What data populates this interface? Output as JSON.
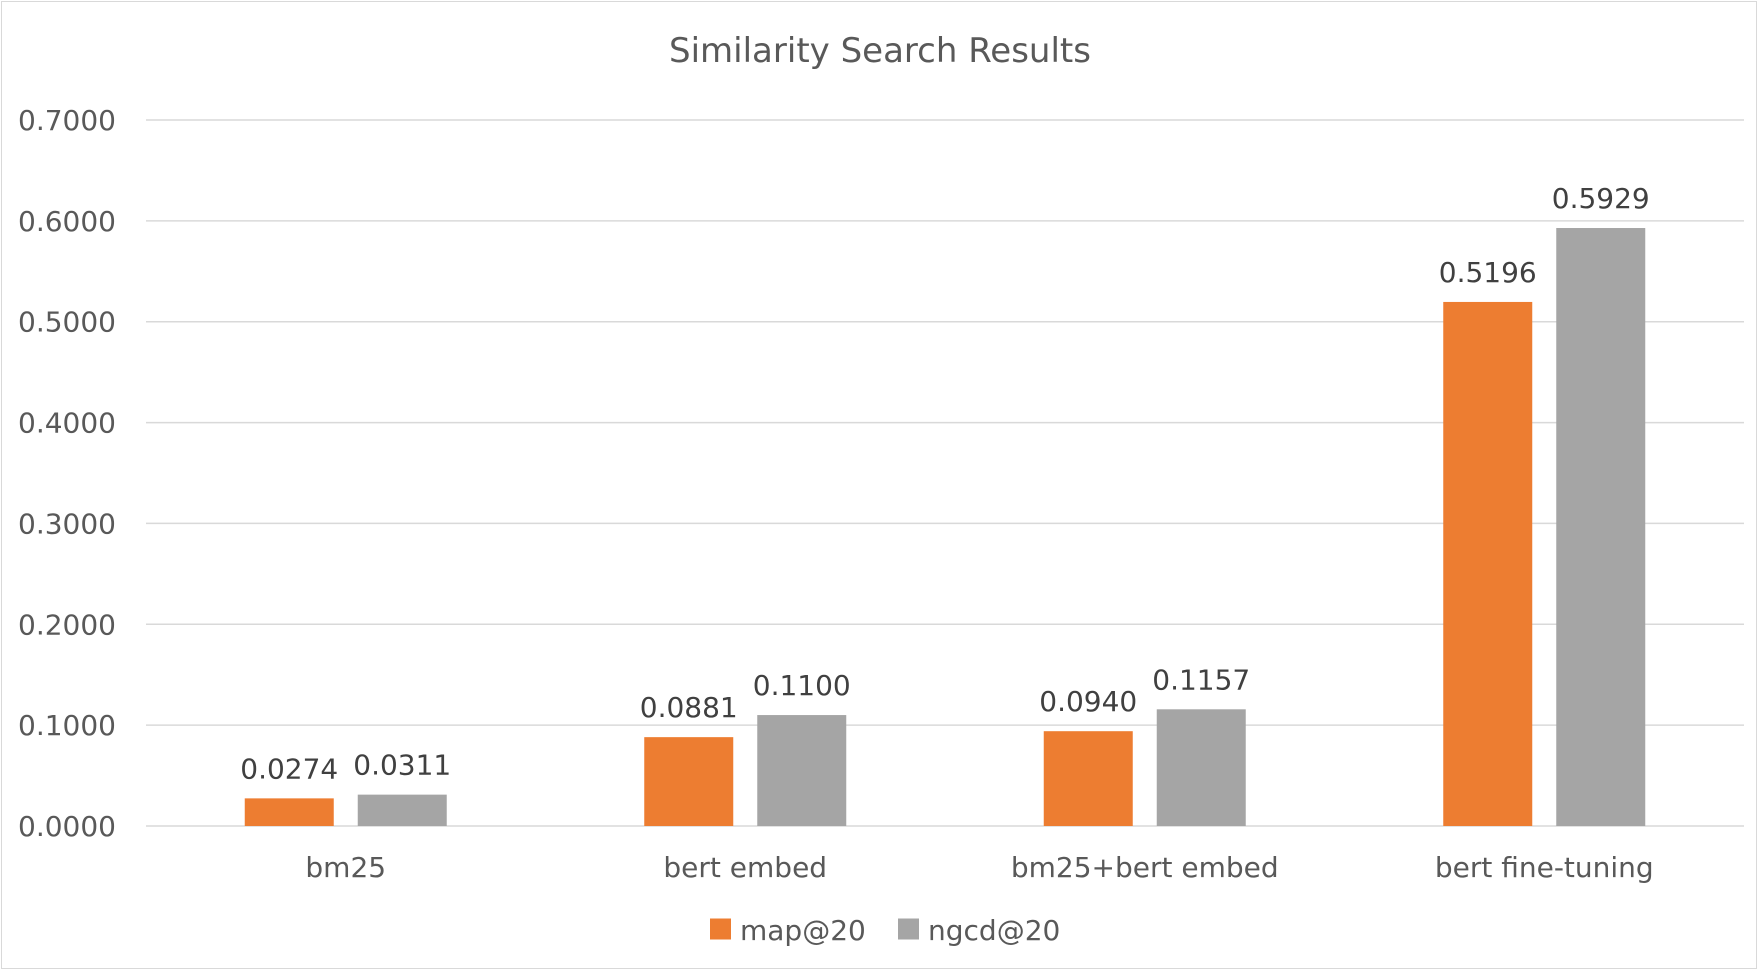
{
  "chart_data": {
    "type": "bar",
    "title": "Similarity Search Results",
    "categories": [
      "bm25",
      "bert embed",
      "bm25+bert embed",
      "bert fine-tuning"
    ],
    "series": [
      {
        "name": "map@20",
        "color": "#ED7D31",
        "values": [
          0.0274,
          0.0881,
          0.094,
          0.5196
        ],
        "labels": [
          "0.0274",
          "0.0881",
          "0.0940",
          "0.5196"
        ]
      },
      {
        "name": "ngcd@20",
        "color": "#A5A5A5",
        "values": [
          0.0311,
          0.11,
          0.1157,
          0.5929
        ],
        "labels": [
          "0.0311",
          "0.1100",
          "0.1157",
          "0.5929"
        ]
      }
    ],
    "yticks": [
      "0.0000",
      "0.1000",
      "0.2000",
      "0.3000",
      "0.4000",
      "0.5000",
      "0.6000",
      "0.7000"
    ],
    "ylim": [
      0,
      0.7
    ],
    "xlabel": "",
    "ylabel": "",
    "grid": true,
    "legend": "bottom-center",
    "colors": {
      "grid": "#D9D9D9",
      "text": "#595959"
    }
  }
}
